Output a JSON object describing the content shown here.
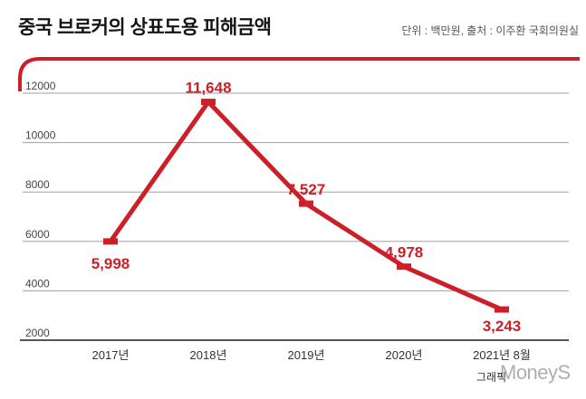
{
  "credit": "그래픽",
  "watermark": "MoneyS",
  "colors": {
    "accent": "#cc1f27",
    "grid": "#a0a0a0",
    "axis": "#555555",
    "text": "#333333"
  },
  "chart_data": {
    "type": "line",
    "title": "중국 브로커의 상표도용 피해금액",
    "unit_note": "단위 : 백만원, 출처 : 이주환 국회의원실",
    "categories": [
      "2017년",
      "2018년",
      "2019년",
      "2020년",
      "2021년 8월"
    ],
    "values": [
      5998,
      11648,
      7527,
      4978,
      3243
    ],
    "data_labels": [
      "5,998",
      "11,648",
      "7,527",
      "4,978",
      "3,243"
    ],
    "yticks": [
      12000,
      10000,
      8000,
      6000,
      4000,
      2000
    ],
    "ylim": [
      2000,
      12000
    ],
    "grid": true,
    "color": "#cc1f27"
  }
}
